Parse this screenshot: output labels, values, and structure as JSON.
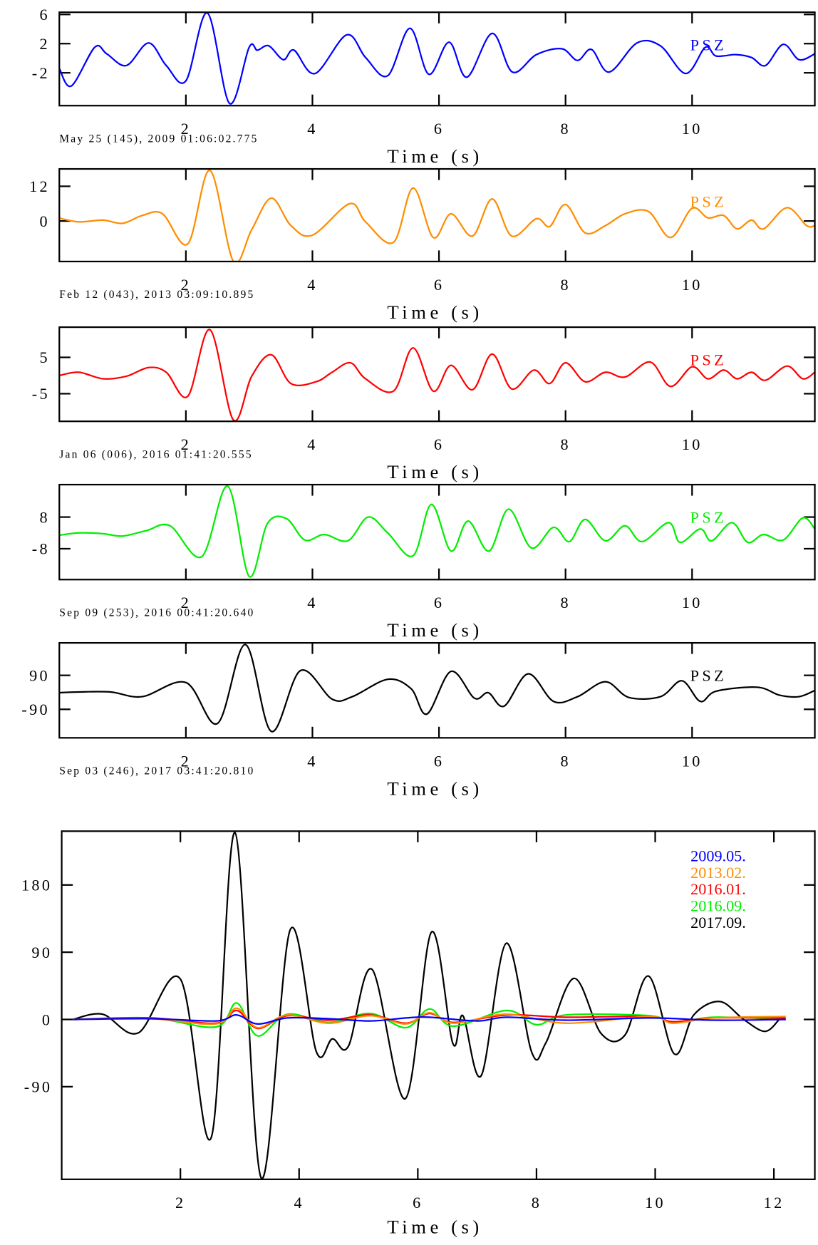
{
  "chart_data": [
    {
      "type": "line",
      "annotation": "PSZ",
      "caption": "May 25 (145), 2009 01:06:02.775",
      "x_label": "Time (s)",
      "xlim": [
        0,
        11.94
      ],
      "xticks": [
        2,
        4,
        6,
        8,
        10
      ],
      "ylim": [
        -6.5,
        6.3
      ],
      "yticks": [
        6,
        2,
        -2
      ],
      "series": [
        {
          "color": "#0000ff",
          "x": [
            0,
            0.19,
            0.56,
            0.75,
            1.06,
            1.41,
            1.69,
            2.0,
            2.34,
            2.69,
            3.0,
            3.13,
            3.31,
            3.54,
            3.71,
            4.04,
            4.54,
            4.84,
            5.19,
            5.54,
            5.84,
            6.16,
            6.44,
            6.84,
            7.16,
            7.54,
            7.94,
            8.19,
            8.41,
            8.69,
            9.13,
            9.5,
            9.9,
            10.21,
            10.38,
            10.69,
            10.94,
            11.16,
            11.44,
            11.69,
            11.94
          ],
          "values": [
            -1.4,
            -3.8,
            1.5,
            0.6,
            -1.0,
            2.1,
            -1.0,
            -3.1,
            6.2,
            -6.2,
            1.5,
            1.1,
            1.7,
            -0.2,
            1.1,
            -2.1,
            3.2,
            0.1,
            -2.4,
            4.1,
            -2.2,
            2.2,
            -2.6,
            3.4,
            -1.9,
            0.5,
            1.3,
            -0.3,
            1.2,
            -1.9,
            2.1,
            1.7,
            -2.1,
            1.5,
            0.3,
            0.5,
            0.1,
            -1.0,
            1.9,
            -0.2,
            0.6
          ]
        }
      ]
    },
    {
      "type": "line",
      "annotation": "PSZ",
      "caption": "Feb 12 (043), 2013 03:09:10.895",
      "x_label": "Time (s)",
      "xlim": [
        0,
        11.94
      ],
      "xticks": [
        2,
        4,
        6,
        8,
        10
      ],
      "ylim": [
        -14,
        18
      ],
      "yticks": [
        12,
        0
      ],
      "series": [
        {
          "color": "#ff8c00",
          "x": [
            0,
            0.31,
            0.69,
            1.0,
            1.31,
            1.63,
            2.03,
            2.38,
            2.75,
            3.04,
            3.35,
            3.66,
            4.0,
            4.59,
            4.84,
            5.28,
            5.59,
            5.91,
            6.19,
            6.53,
            6.84,
            7.15,
            7.54,
            7.75,
            8.0,
            8.31,
            8.63,
            8.94,
            9.31,
            9.66,
            10.0,
            10.25,
            10.5,
            10.71,
            10.94,
            11.13,
            11.5,
            11.81,
            11.94
          ],
          "values": [
            1,
            -0.3,
            0.3,
            -0.8,
            1.9,
            2.5,
            -7.9,
            17.5,
            -13.9,
            -3.0,
            7.9,
            -1.6,
            -4.9,
            6.0,
            -0.3,
            -7.4,
            11.4,
            -5.7,
            2.5,
            -5.2,
            7.6,
            -5.2,
            0.8,
            -1.9,
            5.7,
            -4.1,
            -1.6,
            2.5,
            3.3,
            -5.7,
            4.4,
            1.1,
            1.9,
            -2.7,
            0.3,
            -2.7,
            4.6,
            -1.6,
            -1.6
          ]
        }
      ]
    },
    {
      "type": "line",
      "annotation": "PSZ",
      "caption": "Jan 06 (006), 2016 01:41:20.555",
      "x_label": "Time (s)",
      "xlim": [
        0,
        11.94
      ],
      "xticks": [
        2,
        4,
        6,
        8,
        10
      ],
      "ylim": [
        -12.6,
        13.3
      ],
      "yticks": [
        5,
        -5
      ],
      "series": [
        {
          "color": "#ff0000",
          "x": [
            0,
            0.31,
            0.69,
            1.06,
            1.41,
            1.69,
            2.03,
            2.38,
            2.75,
            3.04,
            3.35,
            3.66,
            4.06,
            4.31,
            4.6,
            4.84,
            5.28,
            5.59,
            5.91,
            6.19,
            6.53,
            6.84,
            7.15,
            7.5,
            7.75,
            8.0,
            8.31,
            8.63,
            8.94,
            9.34,
            9.66,
            10.0,
            10.25,
            10.5,
            10.71,
            10.94,
            11.16,
            11.5,
            11.75,
            11.94
          ],
          "values": [
            0,
            0.9,
            -0.9,
            -0.2,
            2.2,
            0.9,
            -5.7,
            12.6,
            -12.2,
            -0.2,
            5.7,
            -2.2,
            -1.7,
            0.9,
            3.5,
            -0.9,
            -4.3,
            7.6,
            -4.3,
            2.8,
            -3.9,
            5.9,
            -3.7,
            1.5,
            -2.2,
            3.5,
            -1.7,
            0.9,
            -0.4,
            3.7,
            -3.0,
            2.4,
            -0.9,
            1.5,
            -0.9,
            0.9,
            -1.3,
            2.6,
            -0.9,
            0.9
          ]
        }
      ]
    },
    {
      "type": "line",
      "annotation": "PSZ",
      "caption": "Sep 09 (253), 2016 00:41:20.640",
      "x_label": "Time (s)",
      "xlim": [
        0,
        11.94
      ],
      "xticks": [
        2,
        4,
        6,
        8,
        10
      ],
      "ylim": [
        -23.6,
        24.4
      ],
      "yticks": [
        8,
        -8
      ],
      "series": [
        {
          "color": "#00ee00",
          "x": [
            0,
            0.31,
            0.69,
            1.0,
            1.38,
            1.75,
            2.25,
            2.66,
            3.0,
            3.29,
            3.59,
            3.88,
            4.19,
            4.56,
            4.88,
            5.19,
            5.59,
            5.88,
            6.19,
            6.46,
            6.79,
            7.1,
            7.46,
            7.81,
            8.06,
            8.31,
            8.63,
            8.94,
            9.21,
            9.63,
            9.81,
            10.13,
            10.31,
            10.63,
            10.88,
            11.13,
            11.44,
            11.75,
            11.94
          ],
          "values": [
            -1.2,
            0,
            -0.4,
            -1.6,
            1.2,
            3.6,
            -12,
            23.6,
            -22,
            4.8,
            7.2,
            -3.6,
            -0.8,
            -4,
            8,
            0,
            -11.6,
            14.4,
            -9.2,
            6,
            -9.2,
            12,
            -7.6,
            2.8,
            -4.4,
            6.8,
            -4,
            3.6,
            -4.4,
            5.2,
            -4.8,
            2,
            -4,
            5.2,
            -4.8,
            -0.8,
            -3.6,
            7.6,
            2
          ]
        }
      ]
    },
    {
      "type": "line",
      "annotation": "PSZ",
      "caption": "Sep 03 (246), 2017 03:41:20.810",
      "x_label": "Time (s)",
      "xlim": [
        0,
        11.94
      ],
      "xticks": [
        2,
        4,
        6,
        8,
        10
      ],
      "ylim": [
        -241,
        262
      ],
      "yticks": [
        90,
        -90
      ],
      "series": [
        {
          "color": "#000000",
          "x": [
            0,
            0.31,
            0.81,
            1.31,
            2.0,
            2.5,
            2.94,
            3.35,
            3.81,
            4.31,
            4.63,
            5.19,
            5.56,
            5.81,
            6.19,
            6.56,
            6.78,
            7.03,
            7.41,
            7.81,
            8.19,
            8.63,
            9.0,
            9.5,
            9.84,
            10.13,
            10.38,
            11.03,
            11.38,
            11.69,
            11.94
          ],
          "values": [
            -2,
            2,
            2,
            -23,
            52,
            -165,
            253,
            -207,
            115,
            -36,
            -23,
            69,
            19,
            -115,
            111,
            -31,
            -2,
            -73,
            98,
            -48,
            -23,
            56,
            -27,
            -23,
            61,
            -48,
            6,
            27,
            -15,
            -23,
            10
          ]
        }
      ]
    },
    {
      "type": "line",
      "x_label": "Time (s)",
      "legend": "upper right",
      "xlim": [
        0,
        12.69
      ],
      "xticks": [
        2,
        4,
        6,
        8,
        10,
        12
      ],
      "ylim": [
        -214,
        252
      ],
      "yticks": [
        180,
        90,
        0,
        -90
      ],
      "series": [
        {
          "name": "2009.05.",
          "color": "#0000ff",
          "x": [
            0.19,
            1.5,
            2.6,
            2.95,
            3.3,
            3.8,
            4.5,
            5.2,
            5.8,
            6.2,
            7.0,
            7.5,
            8.5,
            9.9,
            11,
            12.2
          ],
          "values": [
            0,
            1,
            -2,
            6,
            -6,
            2,
            1,
            -2,
            2,
            3,
            -2,
            3,
            -1,
            2,
            -1,
            0
          ]
        },
        {
          "name": "2013.02.",
          "color": "#ff8c00",
          "x": [
            0.19,
            1.5,
            2.6,
            2.95,
            3.3,
            3.8,
            4.5,
            5.2,
            5.8,
            6.2,
            6.6,
            7.5,
            8.5,
            9.9,
            10.3,
            11,
            12.2
          ],
          "values": [
            0,
            1,
            -6,
            15,
            -11,
            6,
            -5,
            5,
            -6,
            9,
            -5,
            7,
            -5,
            4,
            -5,
            2,
            4
          ]
        },
        {
          "name": "2016.01.",
          "color": "#ff0000",
          "x": [
            0.19,
            1.5,
            2.6,
            2.95,
            3.3,
            3.8,
            4.5,
            5.2,
            5.8,
            6.2,
            6.6,
            7.5,
            8.5,
            9.9,
            10.3,
            11,
            12.2
          ],
          "values": [
            0,
            2,
            -5,
            12,
            -12,
            5,
            -1,
            6,
            -5,
            8,
            -4,
            6,
            3,
            4,
            -3,
            2,
            2
          ]
        },
        {
          "name": "2016.09.",
          "color": "#00ee00",
          "x": [
            0.19,
            1.5,
            2.6,
            2.95,
            3.3,
            3.8,
            4.5,
            5.2,
            5.8,
            6.2,
            6.6,
            7.5,
            8.0,
            8.5,
            9.9,
            10.3,
            11,
            12.2
          ],
          "values": [
            0,
            2,
            -10,
            22,
            -22,
            7,
            -4,
            8,
            -11,
            14,
            -9,
            12,
            -7,
            6,
            5,
            -4,
            3,
            0
          ]
        },
        {
          "name": "2017.09.",
          "color": "#000000",
          "x": [
            0.19,
            0.69,
            1.29,
            2.0,
            2.52,
            2.92,
            3.36,
            3.85,
            4.29,
            4.56,
            4.83,
            5.23,
            5.79,
            6.23,
            6.59,
            6.76,
            7.07,
            7.49,
            7.92,
            8.16,
            8.63,
            9.09,
            9.49,
            9.89,
            10.32,
            10.65,
            11.09,
            11.49,
            11.85,
            12.09
          ],
          "values": [
            0,
            7,
            -18,
            54,
            -158,
            250,
            -212,
            120,
            -43,
            -26,
            -36,
            67,
            -106,
            117,
            -32,
            5,
            -75,
            102,
            -44,
            -31,
            55,
            -19,
            -21,
            58,
            -46,
            6,
            24,
            0,
            -16,
            0
          ]
        }
      ]
    }
  ]
}
